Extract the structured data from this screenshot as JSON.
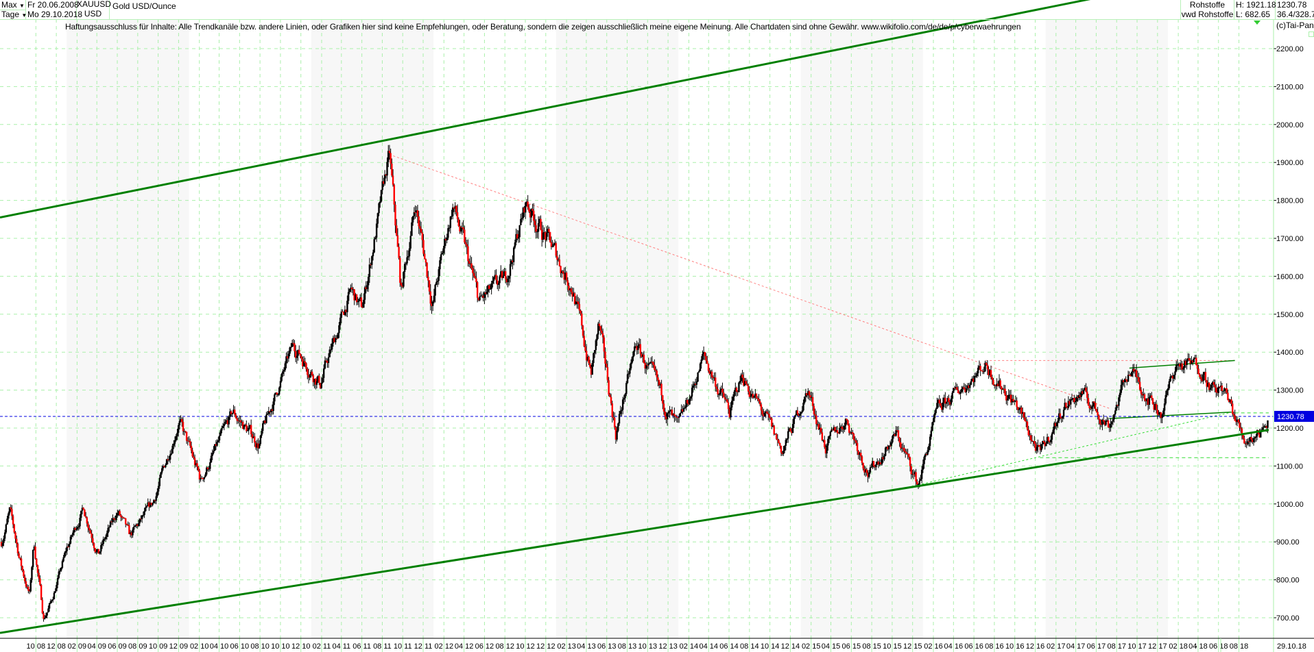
{
  "header": {
    "period_select": "Max",
    "interval_select": "Tage",
    "start_date": "Fr 20.06.2008",
    "end_date": "Mo 29.10.2018",
    "symbol": "XAUUSD",
    "currency": "USD",
    "instrument_name": "Gold USD/Ounce",
    "category": "Rohstoffe",
    "source": "vwd Rohstoffe",
    "high": "H: 1921.18",
    "low": "L: 682.65",
    "last": "1230.78",
    "extra": "36.4/328.7"
  },
  "disclaimer": "Haftungsausschluss für Inhalte: Alle Trendkanäle bzw. andere Linien, oder Grafiken hier sind keine Empfehlungen, oder Beratung, sondern die zeigen ausschließlich meine eigene Meinung. Alle Chartdaten sind ohne Gewähr.  www.wikifolio.com/de/de/p/cyberwaehrungen",
  "copyright": "(c)Tai-Pan",
  "colors": {
    "grid": "#aaf0aa",
    "up": "#ff0000",
    "down": "#000000",
    "channel": "#008000",
    "last_price": "#0000e0",
    "red_trend": "#ff8080",
    "green_dotted": "#33dd33"
  },
  "chart_data": {
    "type": "candlestick",
    "title": "Gold USD/Ounce",
    "x_range": [
      "2008-06-20",
      "2018-10-29"
    ],
    "ylim": [
      650,
      2250
    ],
    "y_ticks": [
      "700.00",
      "800.00",
      "900.00",
      "1000.00",
      "1100.00",
      "1200.00",
      "1300.00",
      "1400.00",
      "1500.00",
      "1600.00",
      "1700.00",
      "1800.00",
      "1900.00",
      "2000.00",
      "2100.00",
      "2200.00"
    ],
    "x_ticks": [
      "10 08",
      "12 08",
      "02 09",
      "04 09",
      "06 09",
      "08 09",
      "10 09",
      "12 09",
      "02 10",
      "04 10",
      "06 10",
      "08 10",
      "10 10",
      "12 10",
      "02 11",
      "04 11",
      "06 11",
      "08 11",
      "10 11",
      "12 11",
      "02 12",
      "04 12",
      "06 12",
      "08 12",
      "10 12",
      "12 12",
      "02 13",
      "04 13",
      "06 13",
      "08 13",
      "10 13",
      "12 13",
      "02 14",
      "04 14",
      "06 14",
      "08 14",
      "10 14",
      "12 14",
      "02 15",
      "04 15",
      "06 15",
      "08 15",
      "10 15",
      "12 15",
      "02 16",
      "04 16",
      "06 16",
      "08 16",
      "10 16",
      "12 16",
      "02 17",
      "04 17",
      "06 17",
      "08 17",
      "10 17",
      "12 17",
      "02 18",
      "04 18",
      "06 18",
      "08 18"
    ],
    "x_end_label": "29.10.18",
    "x_end_dash": "-",
    "last_price": 1230.78,
    "grid": true,
    "price_path": [
      [
        "2008-06-20",
        900
      ],
      [
        "2008-07-15",
        980
      ],
      [
        "2008-08-20",
        830
      ],
      [
        "2008-09-12",
        760
      ],
      [
        "2008-09-25",
        900
      ],
      [
        "2008-10-24",
        700
      ],
      [
        "2008-11-15",
        740
      ],
      [
        "2009-01-01",
        880
      ],
      [
        "2009-02-20",
        990
      ],
      [
        "2009-04-06",
        870
      ],
      [
        "2009-06-02",
        980
      ],
      [
        "2009-07-08",
        910
      ],
      [
        "2009-09-15",
        1000
      ],
      [
        "2009-12-02",
        1220
      ],
      [
        "2010-02-05",
        1060
      ],
      [
        "2010-05-12",
        1240
      ],
      [
        "2010-07-28",
        1160
      ],
      [
        "2010-11-09",
        1420
      ],
      [
        "2011-01-28",
        1320
      ],
      [
        "2011-04-29",
        1560
      ],
      [
        "2011-06-01",
        1510
      ],
      [
        "2011-08-22",
        1921
      ],
      [
        "2011-09-26",
        1560
      ],
      [
        "2011-11-08",
        1790
      ],
      [
        "2011-12-29",
        1530
      ],
      [
        "2012-02-28",
        1790
      ],
      [
        "2012-05-16",
        1530
      ],
      [
        "2012-08-02",
        1590
      ],
      [
        "2012-10-04",
        1795
      ],
      [
        "2012-12-28",
        1660
      ],
      [
        "2013-02-20",
        1570
      ],
      [
        "2013-04-15",
        1340
      ],
      [
        "2013-05-08",
        1470
      ],
      [
        "2013-06-28",
        1190
      ],
      [
        "2013-08-28",
        1420
      ],
      [
        "2013-12-31",
        1190
      ],
      [
        "2014-03-17",
        1390
      ],
      [
        "2014-06-03",
        1240
      ],
      [
        "2014-07-10",
        1340
      ],
      [
        "2014-11-07",
        1140
      ],
      [
        "2015-01-22",
        1300
      ],
      [
        "2015-03-17",
        1150
      ],
      [
        "2015-05-18",
        1225
      ],
      [
        "2015-07-24",
        1080
      ],
      [
        "2015-10-14",
        1185
      ],
      [
        "2015-12-17",
        1050
      ],
      [
        "2016-02-11",
        1240
      ],
      [
        "2016-07-06",
        1370
      ],
      [
        "2016-10-07",
        1260
      ],
      [
        "2016-12-15",
        1125
      ],
      [
        "2017-02-27",
        1260
      ],
      [
        "2017-04-17",
        1290
      ],
      [
        "2017-07-10",
        1210
      ],
      [
        "2017-09-08",
        1355
      ],
      [
        "2017-12-12",
        1240
      ],
      [
        "2018-01-25",
        1365
      ],
      [
        "2018-04-11",
        1365
      ],
      [
        "2018-05-21",
        1290
      ],
      [
        "2018-06-14",
        1305
      ],
      [
        "2018-08-16",
        1170
      ],
      [
        "2018-10-01",
        1190
      ],
      [
        "2018-10-29",
        1230.78
      ]
    ],
    "trend_lines": [
      {
        "kind": "channel-upper",
        "style": "solid",
        "color": "#008000",
        "from": [
          "2008-06-20",
          1755
        ],
        "to": [
          "2018-10-29",
          2425
        ]
      },
      {
        "kind": "channel-lower",
        "style": "solid",
        "color": "#008000",
        "from": [
          "2008-06-20",
          660
        ],
        "to": [
          "2018-10-29",
          1195
        ]
      },
      {
        "kind": "resistance",
        "style": "dotted",
        "color": "#ff8080",
        "from": [
          "2011-08-22",
          1921
        ],
        "to": [
          "2017-07-10",
          1252
        ]
      },
      {
        "kind": "resistance",
        "style": "dotted",
        "color": "#ff8080",
        "from": [
          "2016-07-06",
          1378
        ],
        "to": [
          "2018-07-20",
          1378
        ]
      },
      {
        "kind": "support",
        "style": "dotted",
        "color": "#33dd33",
        "from": [
          "2015-12-17",
          1050
        ],
        "to": [
          "2018-07-01",
          1240
        ]
      },
      {
        "kind": "support",
        "style": "dashed",
        "color": "#33dd33",
        "from": [
          "2016-12-15",
          1122
        ],
        "to": [
          "2018-10-29",
          1122
        ]
      },
      {
        "kind": "support",
        "style": "dashed",
        "color": "#33dd33",
        "from": [
          "2018-07-20",
          1240
        ],
        "to": [
          "2018-10-29",
          1240
        ]
      },
      {
        "kind": "wedge",
        "style": "solid",
        "color": "#008000",
        "from": [
          "2017-09-08",
          1358
        ],
        "to": [
          "2018-07-20",
          1378
        ]
      },
      {
        "kind": "wedge",
        "style": "solid",
        "color": "#008000",
        "from": [
          "2017-07-10",
          1225
        ],
        "to": [
          "2018-07-10",
          1242
        ]
      }
    ]
  }
}
